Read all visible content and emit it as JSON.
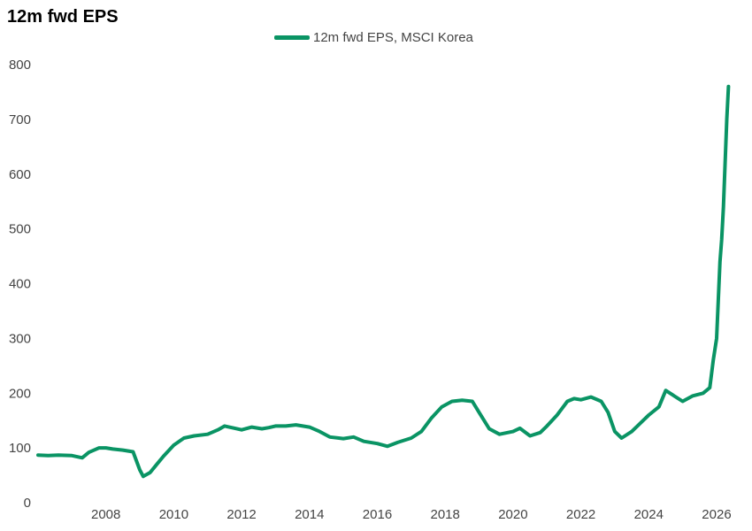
{
  "title": "12m fwd EPS",
  "colors": {
    "series": "#0a9464",
    "text": "#444444"
  },
  "chart_data": {
    "type": "line",
    "title": "12m fwd EPS",
    "xlabel": "",
    "ylabel": "",
    "xlim": [
      2006.0,
      2026.6
    ],
    "ylim": [
      0,
      800
    ],
    "y_ticks": [
      0,
      100,
      200,
      300,
      400,
      500,
      600,
      700,
      800
    ],
    "x_ticks": [
      2008,
      2010,
      2012,
      2014,
      2016,
      2018,
      2020,
      2022,
      2024,
      2026
    ],
    "grid": false,
    "legend": "top-center",
    "series": [
      {
        "name": "12m fwd EPS, MSCI Korea",
        "color": "#0a9464",
        "x": [
          2006.0,
          2006.3,
          2006.6,
          2007.0,
          2007.3,
          2007.5,
          2007.8,
          2008.0,
          2008.2,
          2008.5,
          2008.8,
          2009.0,
          2009.1,
          2009.3,
          2009.5,
          2009.7,
          2010.0,
          2010.3,
          2010.6,
          2011.0,
          2011.3,
          2011.5,
          2011.8,
          2012.0,
          2012.3,
          2012.6,
          2012.8,
          2013.0,
          2013.3,
          2013.6,
          2014.0,
          2014.3,
          2014.6,
          2015.0,
          2015.3,
          2015.6,
          2016.0,
          2016.3,
          2016.6,
          2017.0,
          2017.3,
          2017.6,
          2017.9,
          2018.2,
          2018.5,
          2018.8,
          2019.0,
          2019.3,
          2019.6,
          2020.0,
          2020.2,
          2020.5,
          2020.8,
          2021.0,
          2021.3,
          2021.6,
          2021.8,
          2022.0,
          2022.3,
          2022.6,
          2022.8,
          2023.0,
          2023.2,
          2023.5,
          2023.8,
          2024.0,
          2024.3,
          2024.5,
          2024.7,
          2025.0,
          2025.3,
          2025.6,
          2025.8,
          2025.9,
          2026.0,
          2026.05,
          2026.1,
          2026.15,
          2026.2,
          2026.25,
          2026.3,
          2026.35
        ],
        "y": [
          87,
          86,
          87,
          86,
          82,
          92,
          100,
          100,
          98,
          96,
          93,
          60,
          48,
          55,
          70,
          85,
          105,
          118,
          122,
          125,
          133,
          140,
          136,
          133,
          138,
          135,
          137,
          140,
          140,
          142,
          138,
          130,
          120,
          117,
          120,
          112,
          108,
          103,
          110,
          118,
          130,
          155,
          175,
          185,
          187,
          185,
          165,
          135,
          125,
          130,
          136,
          122,
          128,
          140,
          160,
          185,
          190,
          188,
          193,
          185,
          165,
          130,
          118,
          130,
          148,
          160,
          175,
          205,
          197,
          185,
          195,
          200,
          210,
          260,
          300,
          370,
          440,
          480,
          540,
          620,
          700,
          760
        ]
      }
    ]
  }
}
